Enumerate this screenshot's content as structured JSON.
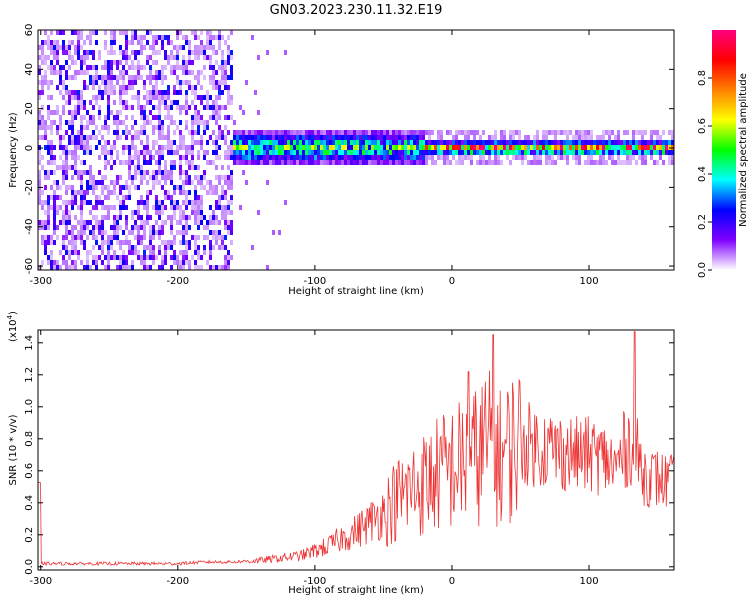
{
  "figure_title": "GN03.2023.230.11.32.E19",
  "chart_data": [
    {
      "type": "heatmap",
      "title": "GN03.2023.230.11.32.E19",
      "xlabel": "Height of straight line (km)",
      "ylabel": "Frequency (Hz)",
      "xlim": [
        -302,
        162
      ],
      "ylim": [
        -62,
        60
      ],
      "x_ticks": [
        -300,
        -200,
        -100,
        0,
        100
      ],
      "x_tick_labels": [
        "-300",
        "-200",
        "-100",
        "0",
        "100"
      ],
      "y_ticks": [
        60,
        40,
        20,
        0,
        -20,
        -40,
        -60
      ],
      "y_tick_labels": [
        "60",
        "40",
        "20",
        "0",
        "-20",
        "-40",
        "-60"
      ],
      "colorbar": {
        "label": "Normalized spectral amplitude",
        "range": [
          0,
          1
        ],
        "ticks": [
          0.0,
          0.2,
          0.4,
          0.6,
          0.8
        ],
        "tick_labels": [
          "0.0",
          "0.2",
          "0.4",
          "0.6",
          "0.8"
        ],
        "colormap": [
          "#ffffff",
          "#8000ff",
          "#0000ff",
          "#00ffff",
          "#00ff00",
          "#ffff00",
          "#ff8000",
          "#ff0000",
          "#ff0080"
        ]
      },
      "regions": [
        {
          "x_range": [
            -302,
            -160
          ],
          "description_values": {
            "amplitude_low": 0.05,
            "amplitude_high": 0.15,
            "freq_range": [
              -60,
              60
            ]
          }
        },
        {
          "x_range": [
            -160,
            -20
          ],
          "description_values": {
            "center_freq": 0,
            "half_width": 10,
            "amplitude_peak": 0.45
          }
        },
        {
          "x_range": [
            -20,
            160
          ],
          "description_values": {
            "center_freq": 0,
            "half_width": 4,
            "amplitude_peak": 0.95
          }
        }
      ],
      "grid": false
    },
    {
      "type": "line",
      "xlabel": "Height of straight line (km)",
      "ylabel": "SNR (10 * v/v)",
      "y_multiplier_label": "(x10",
      "y_multiplier_exp": "4",
      "y_multiplier_close": ")",
      "xlim": [
        -302,
        162
      ],
      "ylim": [
        -0.02,
        1.48
      ],
      "x_ticks": [
        -300,
        -200,
        -100,
        0,
        100
      ],
      "x_tick_labels": [
        "-300",
        "-200",
        "-100",
        "0",
        "100"
      ],
      "y_ticks": [
        0.0,
        0.2,
        0.4,
        0.6,
        0.8,
        1.0,
        1.2,
        1.4
      ],
      "y_tick_labels": [
        "0.0",
        "0.2",
        "0.4",
        "0.6",
        "0.8",
        "1.0",
        "1.2",
        "1.4"
      ],
      "line_color": "#ee3333",
      "series": [
        {
          "x": [
            -300,
            -280,
            -260,
            -240,
            -220,
            -200,
            -180,
            -160,
            -140,
            -120,
            -110,
            -100,
            -90,
            -80,
            -70,
            -60,
            -50,
            -40,
            -30,
            -20,
            -10,
            0,
            10,
            20,
            25,
            30,
            35,
            40,
            45,
            50,
            60,
            70,
            80,
            90,
            100,
            110,
            120,
            125,
            130,
            135,
            140,
            150,
            160
          ],
          "y": [
            0.02,
            0.02,
            0.02,
            0.02,
            0.02,
            0.02,
            0.03,
            0.03,
            0.04,
            0.06,
            0.07,
            0.1,
            0.13,
            0.18,
            0.22,
            0.28,
            0.34,
            0.42,
            0.48,
            0.52,
            0.58,
            0.62,
            0.66,
            0.7,
            0.78,
            0.72,
            0.68,
            0.72,
            0.76,
            0.78,
            0.76,
            0.74,
            0.72,
            0.7,
            0.7,
            0.68,
            0.62,
            0.72,
            0.78,
            0.7,
            0.58,
            0.55,
            0.52
          ]
        }
      ],
      "peaks": [
        {
          "x": 30,
          "y": 1.45
        },
        {
          "x": 133,
          "y": 1.47
        },
        {
          "x": 12,
          "y": 1.22
        }
      ],
      "grid": false
    }
  ]
}
